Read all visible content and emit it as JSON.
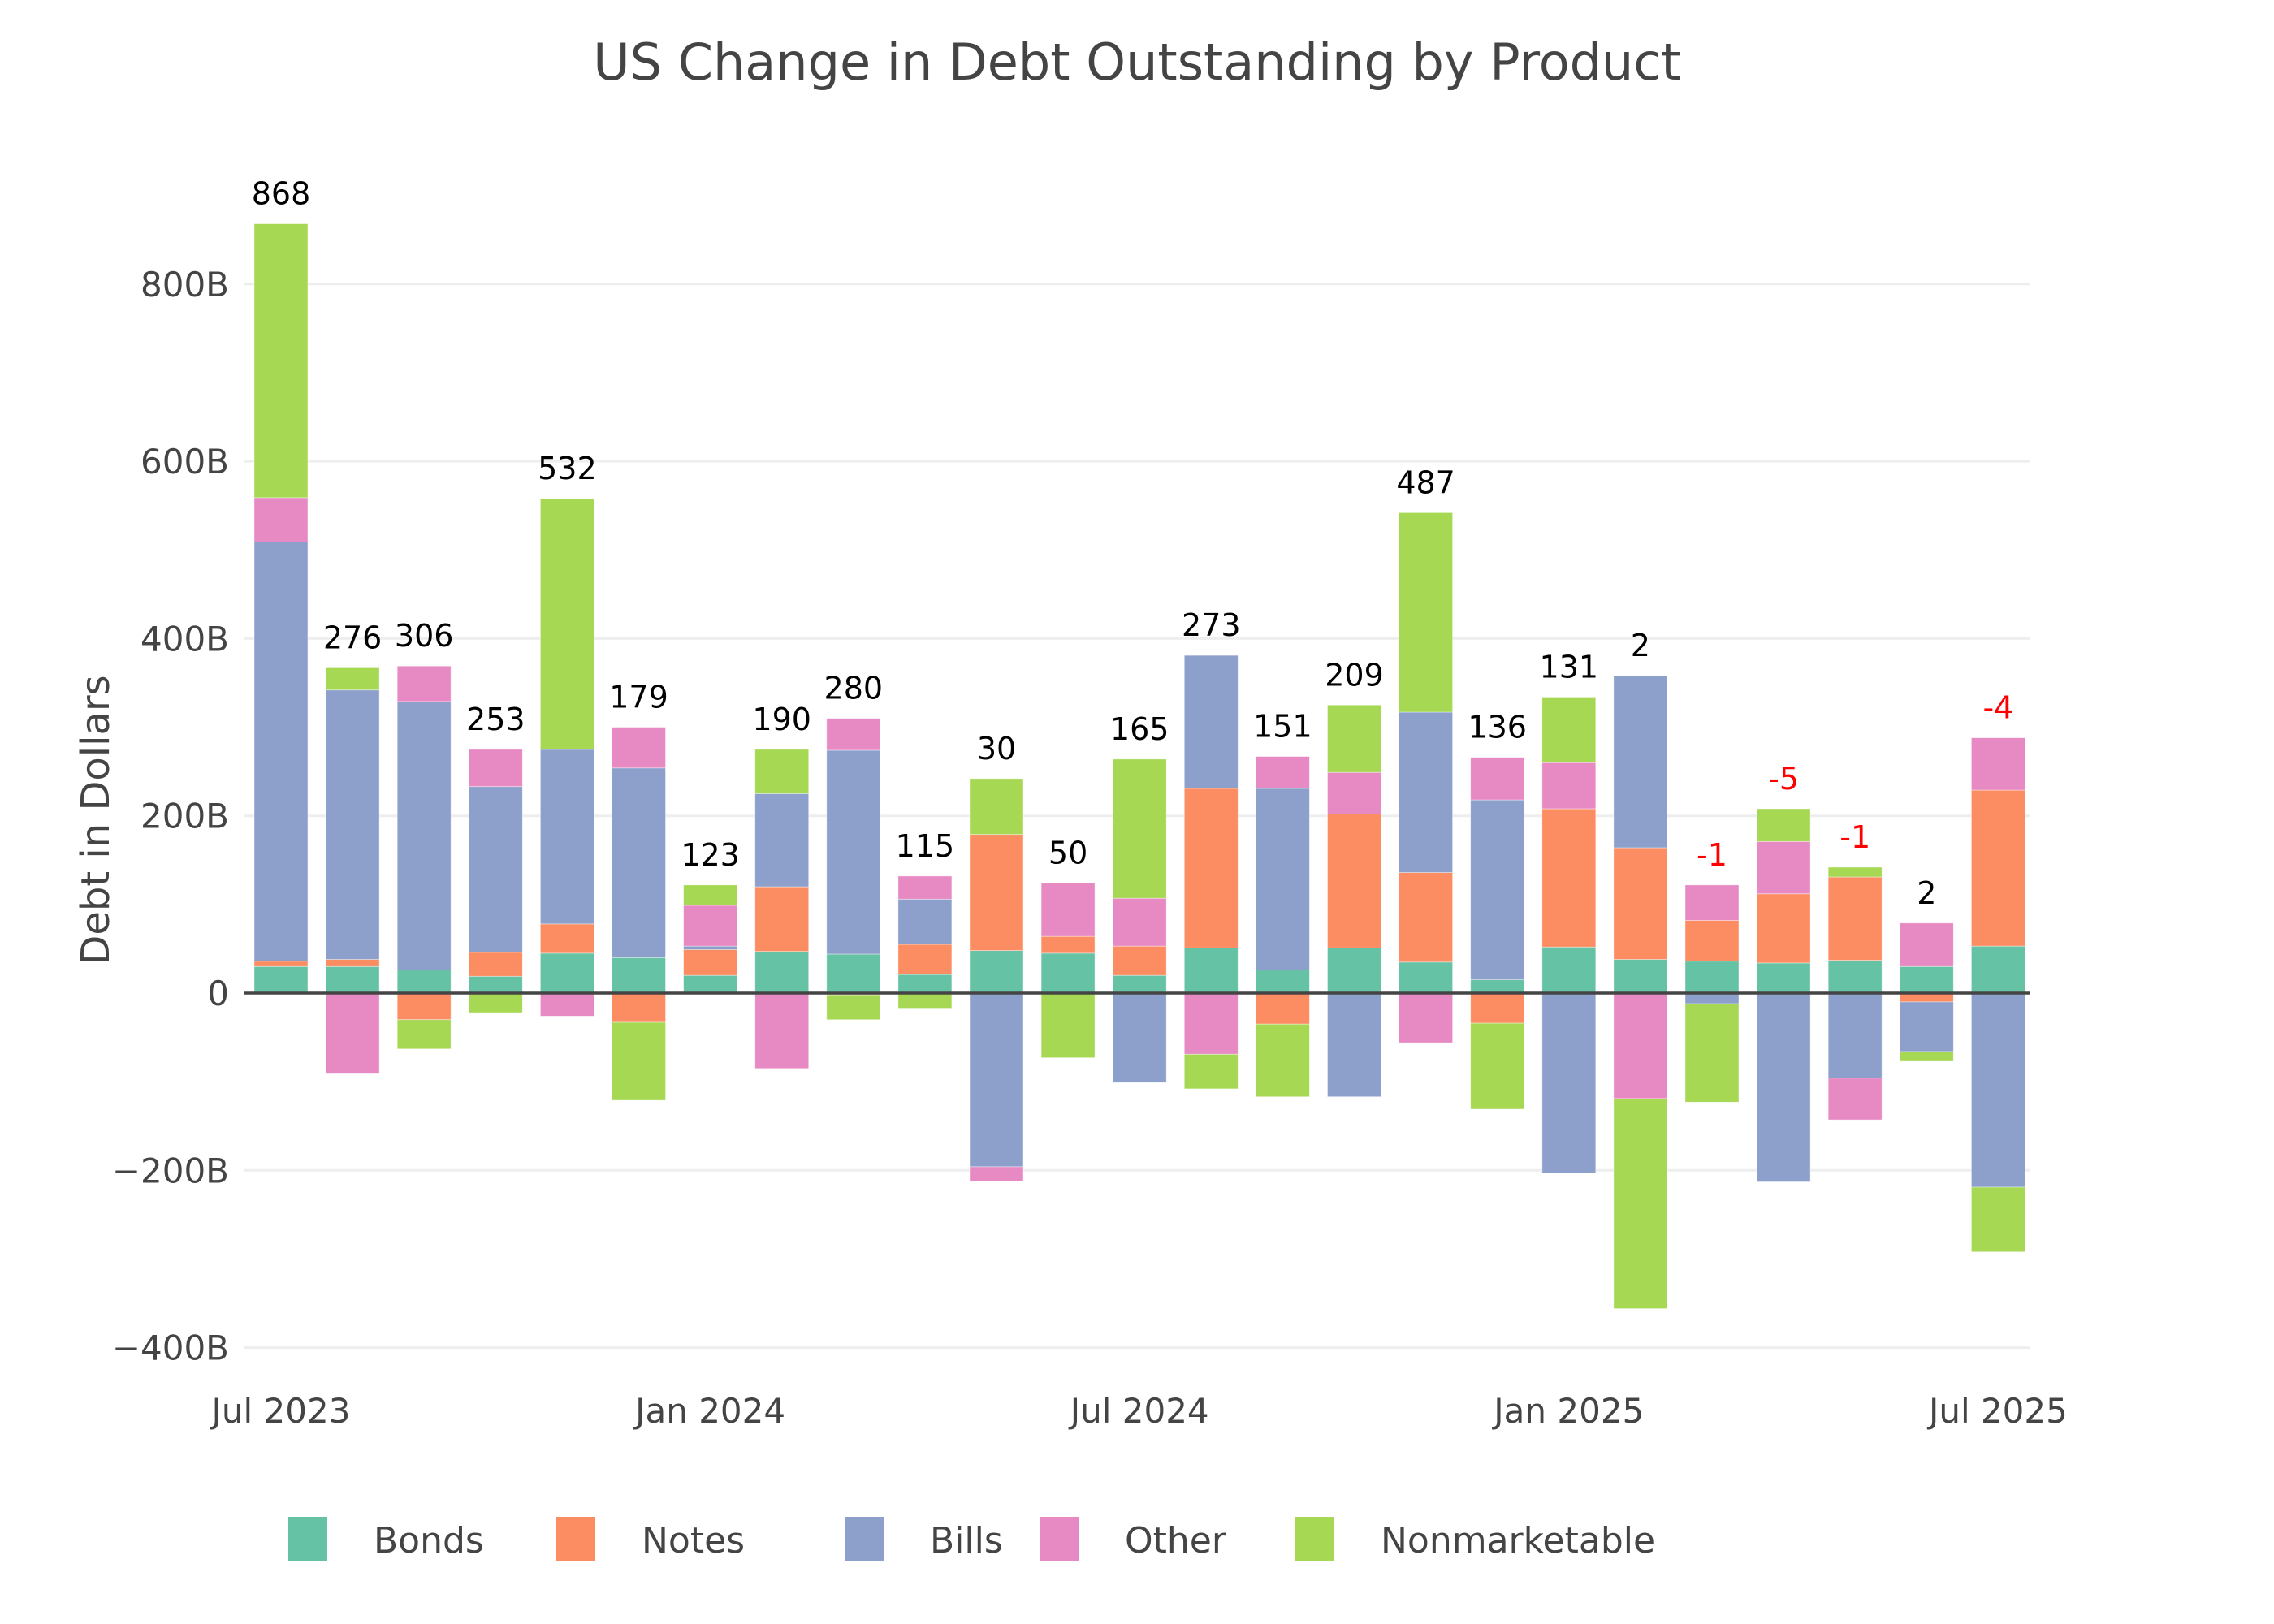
{
  "chart_data": {
    "type": "bar",
    "barmode": "relative-stacked",
    "title": "US Change in Debt Outstanding by Product",
    "xlabel": "",
    "ylabel": "Debt in Dollars",
    "ylim": [
      -420,
      900
    ],
    "y_unit": "B",
    "yticks": [
      {
        "value": 800,
        "label": "800B"
      },
      {
        "value": 600,
        "label": "600B"
      },
      {
        "value": 400,
        "label": "400B"
      },
      {
        "value": 200,
        "label": "200B"
      },
      {
        "value": 0,
        "label": "0"
      },
      {
        "value": -200,
        "label": "−200B"
      },
      {
        "value": -400,
        "label": "−400B"
      }
    ],
    "xticks": [
      {
        "index": 0,
        "label": "Jul 2023"
      },
      {
        "index": 6,
        "label": "Jan 2024"
      },
      {
        "index": 12,
        "label": "Jul 2024"
      },
      {
        "index": 18,
        "label": "Jan 2025"
      },
      {
        "index": 24,
        "label": "Jul 2025"
      }
    ],
    "grid": true,
    "legend_position": "bottom",
    "categories": [
      "Jul 2023",
      "Aug 2023",
      "Sep 2023",
      "Oct 2023",
      "Nov 2023",
      "Dec 2023",
      "Jan 2024",
      "Feb 2024",
      "Mar 2024",
      "Apr 2024",
      "May 2024",
      "Jun 2024",
      "Jul 2024",
      "Aug 2024",
      "Sep 2024",
      "Oct 2024",
      "Nov 2024",
      "Dec 2024",
      "Jan 2025",
      "Feb 2025",
      "Mar 2025",
      "Apr 2025",
      "May 2025",
      "Jun 2025",
      "Jul 2025"
    ],
    "series": [
      {
        "name": "Bonds",
        "color": "#66c2a5",
        "values": [
          30,
          30,
          26,
          19,
          45,
          40,
          20,
          47,
          44,
          21,
          48,
          45,
          20,
          51,
          26,
          51,
          35,
          15,
          52,
          38,
          36,
          34,
          37,
          30,
          53
        ]
      },
      {
        "name": "Notes",
        "color": "#fc8d62",
        "values": [
          6,
          8,
          -30,
          27,
          33,
          -33,
          29,
          73,
          -2,
          34,
          131,
          19,
          33,
          180,
          -35,
          151,
          101,
          -34,
          156,
          126,
          46,
          78,
          94,
          -10,
          176
        ]
      },
      {
        "name": "Bills",
        "color": "#8da0cb",
        "values": [
          473,
          304,
          303,
          187,
          197,
          214,
          4,
          105,
          230,
          51,
          -196,
          0,
          -101,
          150,
          205,
          -117,
          181,
          203,
          -203,
          194,
          -12,
          -213,
          -96,
          -56,
          -219
        ]
      },
      {
        "name": "Other",
        "color": "#e78ac3",
        "values": [
          50,
          -91,
          40,
          42,
          -26,
          46,
          46,
          -85,
          36,
          26,
          -16,
          60,
          54,
          -69,
          36,
          47,
          -56,
          48,
          52,
          -119,
          40,
          59,
          -47,
          49,
          59
        ]
      },
      {
        "name": "Nonmarketable",
        "color": "#a6d854",
        "values": [
          309,
          25,
          -33,
          -22,
          283,
          -88,
          23,
          50,
          -28,
          -17,
          63,
          -73,
          157,
          -39,
          -82,
          76,
          225,
          -97,
          74,
          -237,
          -111,
          37,
          11,
          -11,
          -73
        ]
      }
    ],
    "totals": [
      {
        "label": "868",
        "color": "#000000"
      },
      {
        "label": "276",
        "color": "#000000"
      },
      {
        "label": "306",
        "color": "#000000"
      },
      {
        "label": "253",
        "color": "#000000"
      },
      {
        "label": "532",
        "color": "#000000"
      },
      {
        "label": "179",
        "color": "#000000"
      },
      {
        "label": "123",
        "color": "#000000"
      },
      {
        "label": "190",
        "color": "#000000"
      },
      {
        "label": "280",
        "color": "#000000"
      },
      {
        "label": "115",
        "color": "#000000"
      },
      {
        "label": "30",
        "color": "#000000"
      },
      {
        "label": "50",
        "color": "#000000"
      },
      {
        "label": "165",
        "color": "#000000"
      },
      {
        "label": "273",
        "color": "#000000"
      },
      {
        "label": "151",
        "color": "#000000"
      },
      {
        "label": "209",
        "color": "#000000"
      },
      {
        "label": "487",
        "color": "#000000"
      },
      {
        "label": "136",
        "color": "#000000"
      },
      {
        "label": "131",
        "color": "#000000"
      },
      {
        "label": "2",
        "color": "#000000"
      },
      {
        "label": "-1",
        "color": "#ff0000"
      },
      {
        "label": "-5",
        "color": "#ff0000"
      },
      {
        "label": "-1",
        "color": "#ff0000"
      },
      {
        "label": "2",
        "color": "#000000"
      },
      {
        "label": "-4",
        "color": "#ff0000"
      }
    ]
  }
}
